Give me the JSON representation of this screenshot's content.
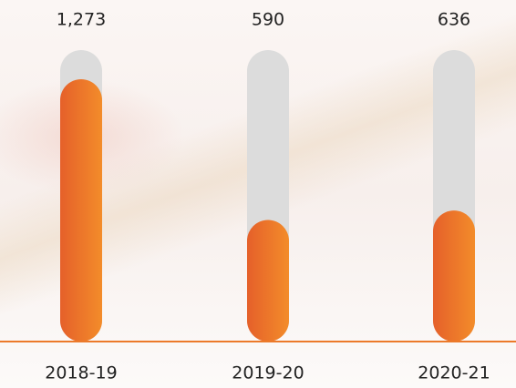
{
  "chart_data": {
    "type": "bar",
    "categories": [
      "2018-19",
      "2019-20",
      "2020-21"
    ],
    "values": [
      1273,
      590,
      636
    ],
    "value_labels": [
      "1,273",
      "590",
      "636"
    ],
    "color": "#ec7a2a",
    "track_color": "#dcdcdc"
  }
}
